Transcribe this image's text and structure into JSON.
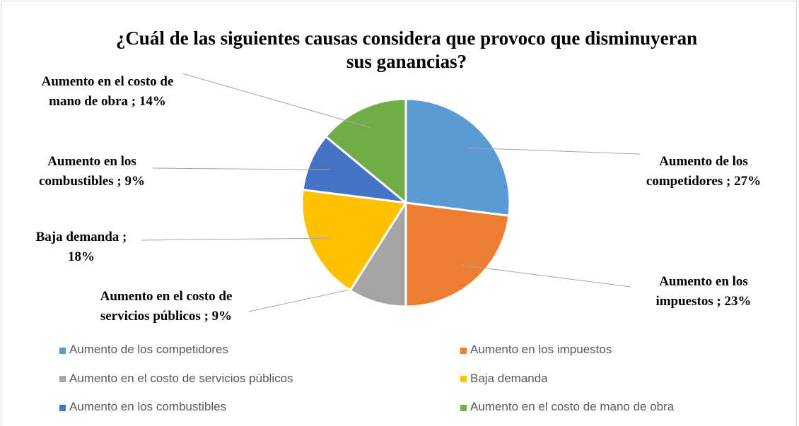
{
  "chart_data": {
    "type": "pie",
    "title": "¿Cuál de las siguientes causas considera que provoco que disminuyeran sus ganancias?",
    "categories": [
      "Aumento de los competidores",
      "Aumento en los impuestos",
      "Aumento en el costo de servicios públicos",
      "Baja demanda",
      "Aumento en los combustibles",
      "Aumento en el costo de mano de obra"
    ],
    "values": [
      27,
      23,
      9,
      18,
      9,
      14
    ],
    "value_labels": [
      "Aumento de los competidores ; 27%",
      "Aumento en los impuestos ; 23%",
      "Aumento en el costo de servicios públicos ; 9%",
      "Baja demanda ; 18%",
      "Aumento en los combustibles ; 9%",
      "Aumento en el costo de mano de obra ; 14%"
    ],
    "colors": [
      "#5b9bd5",
      "#ed7d31",
      "#a5a5a5",
      "#ffc000",
      "#4472c4",
      "#70ad47"
    ],
    "legend": "bottom"
  }
}
